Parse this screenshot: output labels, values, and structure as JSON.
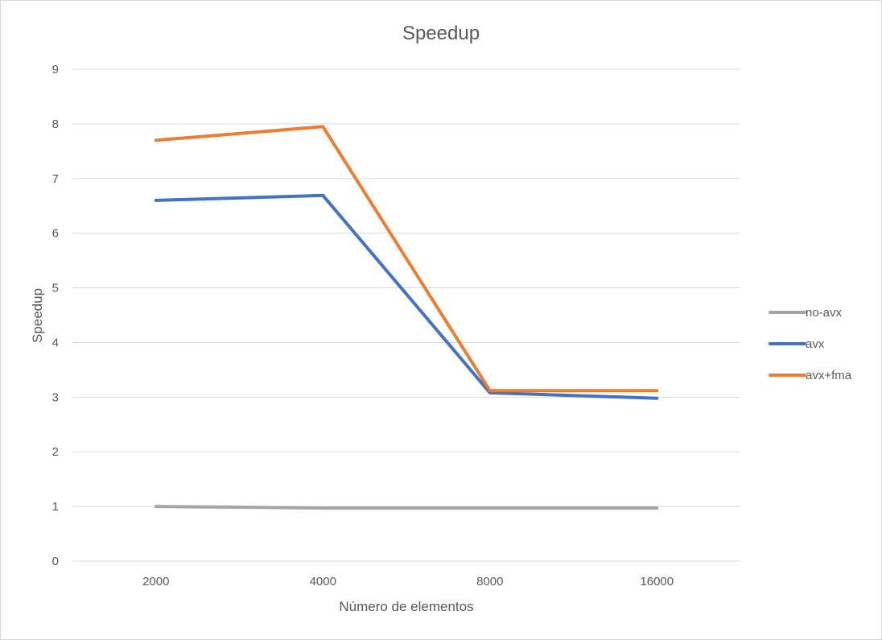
{
  "chart_data": {
    "type": "line",
    "title": "Speedup",
    "xlabel": "Número de elementos",
    "ylabel": "Speedup",
    "categories": [
      "2000",
      "4000",
      "8000",
      "16000"
    ],
    "ylim": [
      0,
      9
    ],
    "yticks": [
      "0",
      "1",
      "2",
      "3",
      "4",
      "5",
      "6",
      "7",
      "8",
      "9"
    ],
    "grid": true,
    "legend_position": "right",
    "series": [
      {
        "name": "no-avx",
        "color": "#a5a5a5",
        "values": [
          1.0,
          0.97,
          0.97,
          0.97
        ]
      },
      {
        "name": "avx",
        "color": "#4472c4",
        "values": [
          6.6,
          6.69,
          3.08,
          2.98
        ]
      },
      {
        "name": "avx+fma",
        "color": "#ed7d31",
        "values": [
          7.7,
          7.95,
          3.12,
          3.12
        ]
      }
    ]
  }
}
